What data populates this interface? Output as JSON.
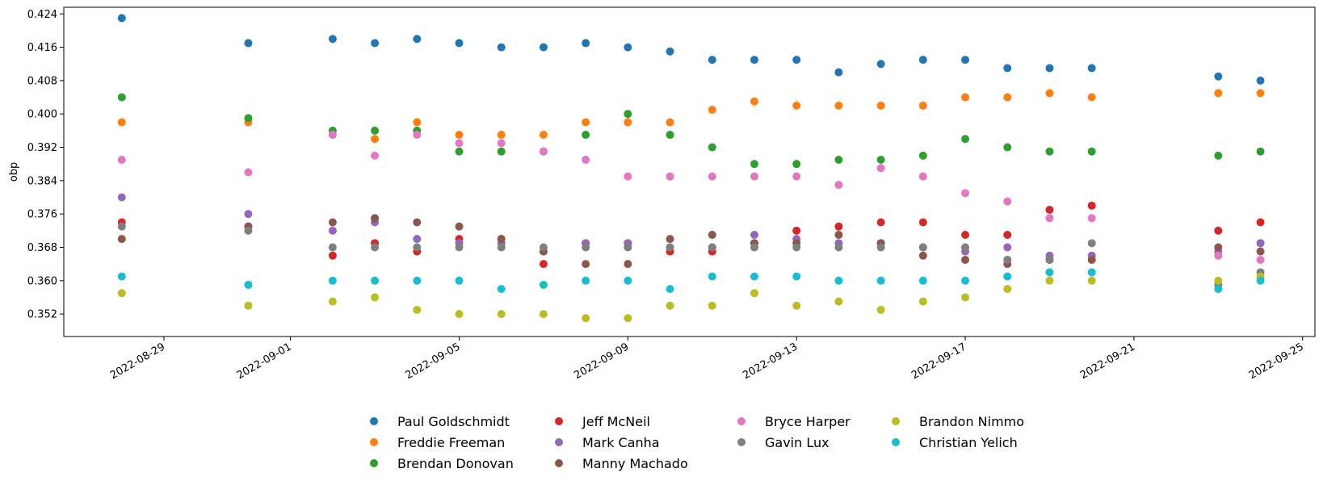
{
  "chart_data": {
    "type": "scatter",
    "title": "",
    "xlabel": "",
    "ylabel": "obp",
    "x_ticks": [
      "2022-08-29",
      "2022-09-01",
      "2022-09-05",
      "2022-09-09",
      "2022-09-13",
      "2022-09-17",
      "2022-09-21",
      "2022-09-25"
    ],
    "y_ticks": [
      "0.352",
      "0.360",
      "0.368",
      "0.376",
      "0.384",
      "0.392",
      "0.400",
      "0.408",
      "0.416",
      "0.424"
    ],
    "xlim": [
      "2022-08-26T15:00",
      "2022-09-25T07:00"
    ],
    "ylim": [
      0.3466,
      0.4256
    ],
    "grid": false,
    "legend_position": "bottom-center",
    "dates": [
      "2022-08-28",
      "2022-08-31",
      "2022-09-02",
      "2022-09-03",
      "2022-09-04",
      "2022-09-05",
      "2022-09-06",
      "2022-09-07",
      "2022-09-08",
      "2022-09-09",
      "2022-09-10",
      "2022-09-11",
      "2022-09-12",
      "2022-09-13",
      "2022-09-14",
      "2022-09-15",
      "2022-09-16",
      "2022-09-17",
      "2022-09-18",
      "2022-09-19",
      "2022-09-20",
      "2022-09-23",
      "2022-09-24"
    ],
    "series": [
      {
        "name": "Paul Goldschmidt",
        "color": "#1f77b4",
        "values": [
          0.423,
          0.417,
          0.418,
          0.417,
          0.418,
          0.417,
          0.416,
          0.416,
          0.417,
          0.416,
          0.415,
          0.413,
          0.413,
          0.413,
          0.41,
          0.412,
          0.413,
          0.413,
          0.411,
          0.411,
          0.411,
          0.409,
          0.408
        ]
      },
      {
        "name": "Freddie Freeman",
        "color": "#ff7f0e",
        "values": [
          0.398,
          0.398,
          0.395,
          0.394,
          0.398,
          0.395,
          0.395,
          0.395,
          0.398,
          0.398,
          0.398,
          0.401,
          0.403,
          0.402,
          0.402,
          0.402,
          0.402,
          0.404,
          0.404,
          0.405,
          0.404,
          0.405,
          0.405
        ]
      },
      {
        "name": "Brendan Donovan",
        "color": "#2ca02c",
        "values": [
          0.404,
          0.399,
          0.396,
          0.396,
          0.396,
          0.391,
          0.391,
          0.391,
          0.395,
          0.4,
          0.395,
          0.392,
          0.388,
          0.388,
          0.389,
          0.389,
          0.39,
          0.394,
          0.392,
          0.391,
          0.391,
          0.39,
          0.391
        ]
      },
      {
        "name": "Jeff McNeil",
        "color": "#d62728",
        "values": [
          0.374,
          0.373,
          0.366,
          0.369,
          0.367,
          0.37,
          0.37,
          0.364,
          0.369,
          0.369,
          0.367,
          0.367,
          0.369,
          0.372,
          0.373,
          0.374,
          0.374,
          0.371,
          0.371,
          0.377,
          0.378,
          0.372,
          0.374
        ]
      },
      {
        "name": "Mark Canha",
        "color": "#9467bd",
        "values": [
          0.38,
          0.376,
          0.372,
          0.374,
          0.37,
          0.369,
          0.369,
          0.367,
          0.369,
          0.369,
          0.368,
          0.368,
          0.371,
          0.37,
          0.369,
          0.369,
          0.368,
          0.367,
          0.368,
          0.366,
          0.366,
          0.367,
          0.369
        ]
      },
      {
        "name": "Manny Machado",
        "color": "#8c564b",
        "values": [
          0.37,
          0.373,
          0.374,
          0.375,
          0.374,
          0.373,
          0.37,
          0.367,
          0.364,
          0.364,
          0.37,
          0.371,
          0.369,
          0.369,
          0.371,
          0.369,
          0.366,
          0.365,
          0.364,
          0.365,
          0.365,
          0.368,
          0.367
        ]
      },
      {
        "name": "Bryce Harper",
        "color": "#e377c2",
        "values": [
          0.389,
          0.386,
          0.395,
          0.39,
          0.395,
          0.393,
          0.393,
          0.391,
          0.389,
          0.385,
          0.385,
          0.385,
          0.385,
          0.385,
          0.383,
          0.387,
          0.385,
          0.381,
          0.379,
          0.375,
          0.375,
          0.366,
          0.365
        ]
      },
      {
        "name": "Gavin Lux",
        "color": "#7f7f7f",
        "values": [
          0.373,
          0.372,
          0.368,
          0.368,
          0.368,
          0.368,
          0.368,
          0.368,
          0.368,
          0.368,
          0.368,
          0.368,
          0.368,
          0.368,
          0.368,
          0.368,
          0.368,
          0.368,
          0.365,
          0.365,
          0.369,
          0.359,
          0.362
        ]
      },
      {
        "name": "Brandon Nimmo",
        "color": "#bcbd22",
        "values": [
          0.357,
          0.354,
          0.355,
          0.356,
          0.353,
          0.352,
          0.352,
          0.352,
          0.351,
          0.351,
          0.354,
          0.354,
          0.357,
          0.354,
          0.355,
          0.353,
          0.355,
          0.356,
          0.358,
          0.36,
          0.36,
          0.36,
          0.361
        ]
      },
      {
        "name": "Christian Yelich",
        "color": "#17becf",
        "values": [
          0.361,
          0.359,
          0.36,
          0.36,
          0.36,
          0.36,
          0.358,
          0.359,
          0.36,
          0.36,
          0.358,
          0.361,
          0.361,
          0.361,
          0.36,
          0.36,
          0.36,
          0.36,
          0.361,
          0.362,
          0.362,
          0.358,
          0.36
        ]
      }
    ]
  }
}
